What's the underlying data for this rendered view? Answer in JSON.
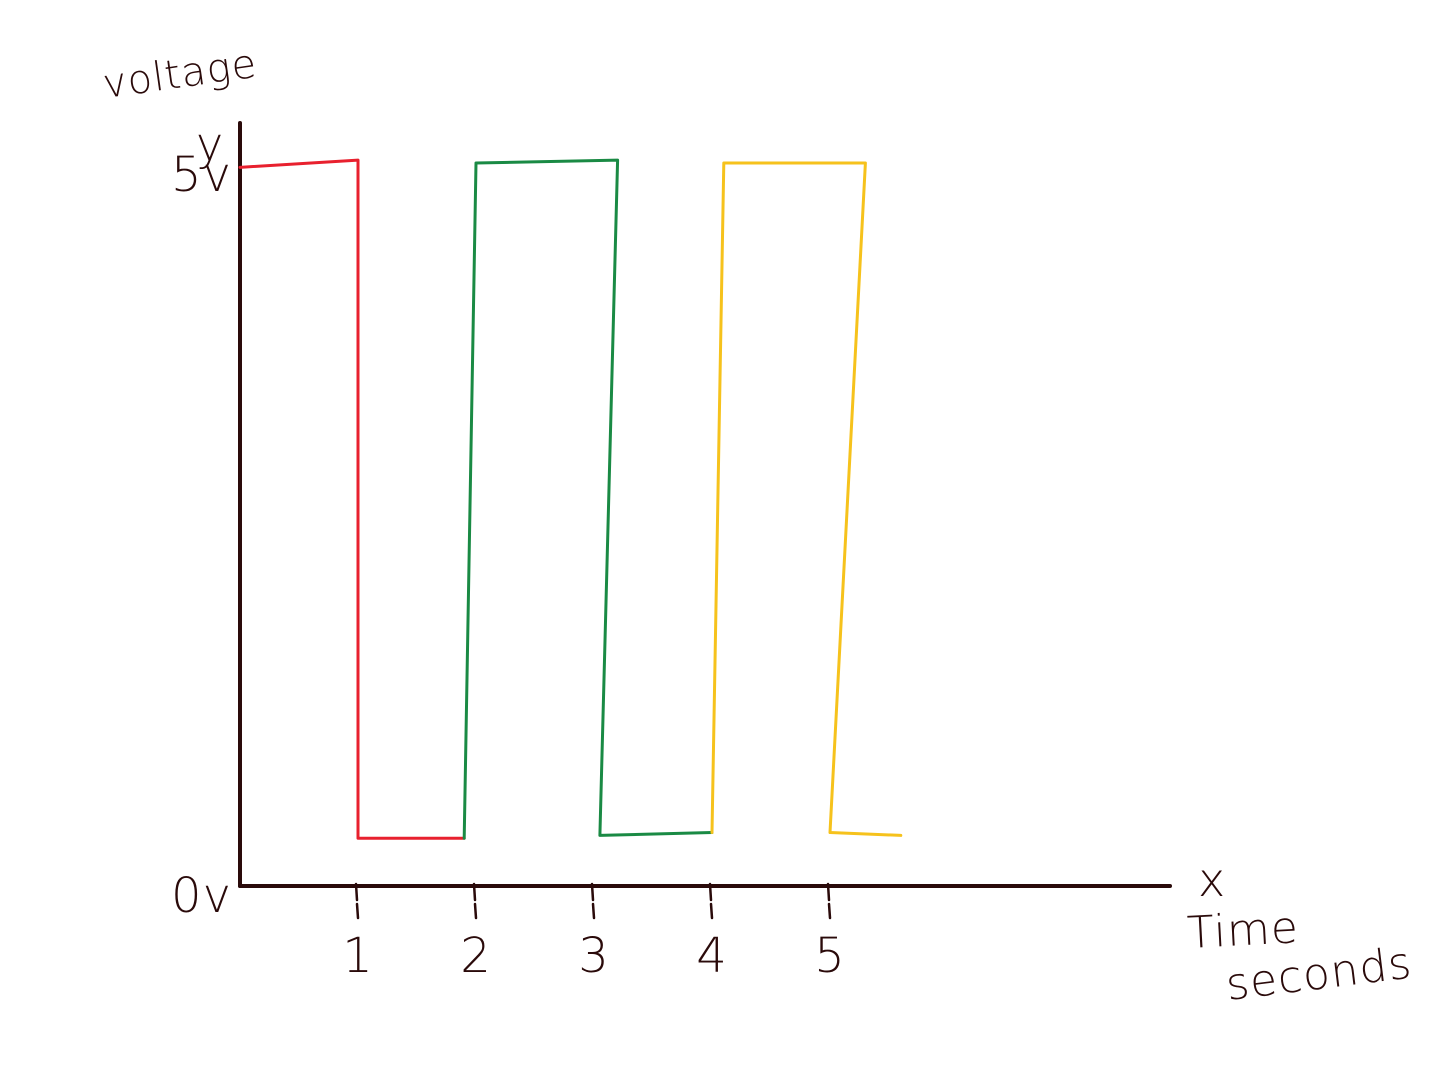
{
  "chart_data": {
    "type": "line",
    "ylabel": "voltage",
    "y_axis_letter": "y",
    "x_axis_letter": "x",
    "xlabel_line1": "Time",
    "xlabel_line2": "seconds",
    "y_ticks": [
      {
        "value": 0,
        "label": "0v"
      },
      {
        "value": 5,
        "label": "5v"
      }
    ],
    "x_ticks": [
      {
        "value": 1,
        "label": "1"
      },
      {
        "value": 2,
        "label": "2"
      },
      {
        "value": 3,
        "label": "3"
      },
      {
        "value": 4,
        "label": "4"
      },
      {
        "value": 5,
        "label": "5"
      }
    ],
    "xlim": [
      0,
      8
    ],
    "ylim": [
      0,
      5
    ],
    "grid": false,
    "series": [
      {
        "color": "#e8202e",
        "points": [
          [
            0,
            4.97
          ],
          [
            1,
            5.02
          ],
          [
            1,
            0.33
          ],
          [
            1.9,
            0.33
          ]
        ]
      },
      {
        "color": "#1a8a44",
        "points": [
          [
            1.9,
            0.33
          ],
          [
            2.0,
            5.0
          ],
          [
            3.2,
            5.02
          ],
          [
            3.05,
            0.35
          ],
          [
            4.0,
            0.37
          ]
        ]
      },
      {
        "color": "#f6c21c",
        "points": [
          [
            4.0,
            0.37
          ],
          [
            4.1,
            5.0
          ],
          [
            5.3,
            5.0
          ],
          [
            5.0,
            0.37
          ],
          [
            5.6,
            0.35
          ]
        ]
      }
    ]
  }
}
